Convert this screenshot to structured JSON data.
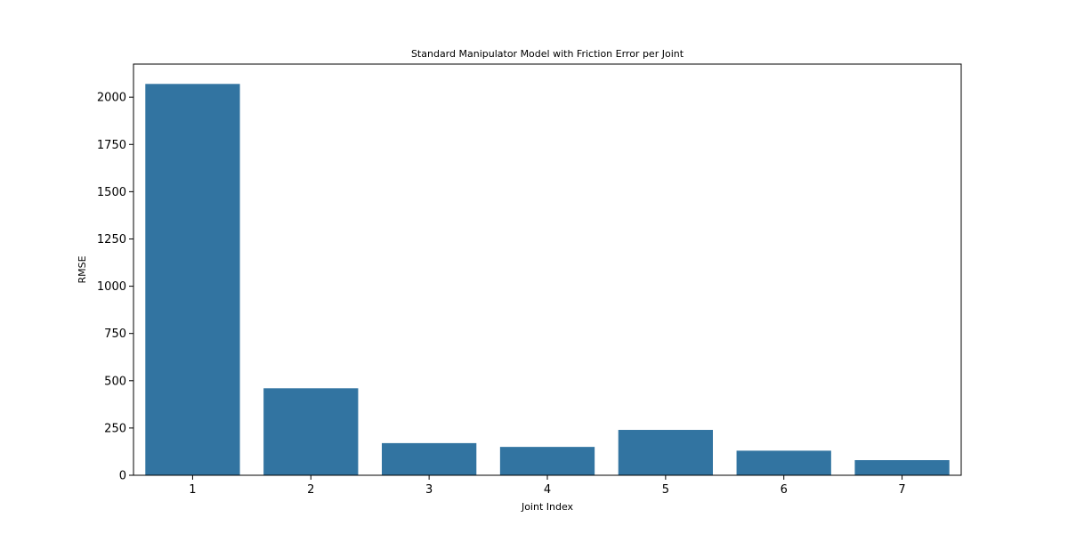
{
  "chart_data": {
    "type": "bar",
    "title": "Standard Manipulator Model with Friction Error per Joint",
    "xlabel": "Joint Index",
    "ylabel": "RMSE",
    "categories": [
      "1",
      "2",
      "3",
      "4",
      "5",
      "6",
      "7"
    ],
    "values": [
      2070,
      460,
      170,
      150,
      240,
      130,
      80
    ],
    "ylim": [
      0,
      2175
    ],
    "yticks": [
      0,
      250,
      500,
      750,
      1000,
      1250,
      1500,
      1750,
      2000
    ],
    "ytick_labels": [
      "0",
      "250",
      "500",
      "750",
      "1000",
      "1250",
      "1500",
      "1750",
      "2000"
    ],
    "bar_color": "#3274a1",
    "grid": false,
    "legend": "none"
  }
}
